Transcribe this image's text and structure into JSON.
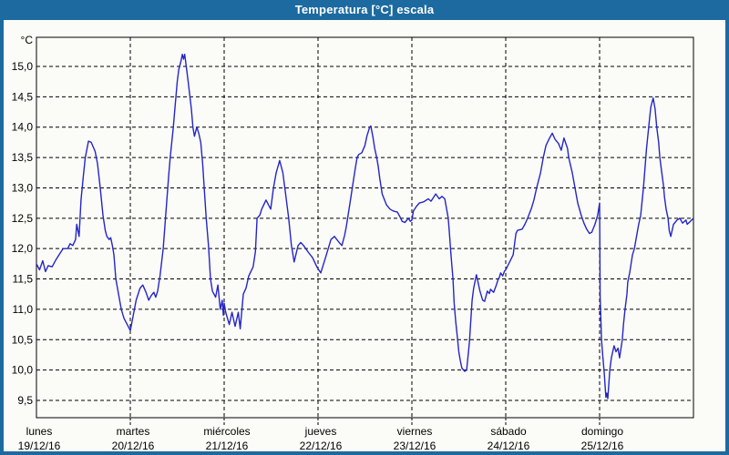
{
  "window": {
    "title": "Temperatura [°C] escala",
    "title_bar_color": "#1c6aa0",
    "border_color": "#1c6aa0",
    "background_color": "#fbfcf7"
  },
  "chart_data": {
    "type": "line",
    "title": "Temperatura [°C] escala",
    "grid": "dashed",
    "legend": "none",
    "line_color": "#2525c8",
    "y_axis": {
      "unit": "°C",
      "decimal_separator": ",",
      "tick_values": [
        15.0,
        14.5,
        14.0,
        13.5,
        13.0,
        12.5,
        12.0,
        11.5,
        11.0,
        10.5,
        10.0,
        9.5
      ],
      "tick_labels": [
        "15,0",
        "14,5",
        "14,0",
        "13,5",
        "13,0",
        "12,5",
        "12,0",
        "11,5",
        "11,0",
        "10,5",
        "10,0",
        "9,5"
      ],
      "range": [
        9.2,
        15.5
      ]
    },
    "x_axis": {
      "hours_total": 168,
      "days": [
        {
          "name": "lunes",
          "date": "19/12/16"
        },
        {
          "name": "martes",
          "date": "20/12/16"
        },
        {
          "name": "miércoles",
          "date": "21/12/16"
        },
        {
          "name": "jueves",
          "date": "22/12/16"
        },
        {
          "name": "viernes",
          "date": "23/12/16"
        },
        {
          "name": "sábado",
          "date": "24/12/16"
        },
        {
          "name": "domingo",
          "date": "25/12/16"
        }
      ]
    },
    "series": [
      {
        "name": "Temperatura",
        "points_format": "[hours_since_monday_00, temp_celsius]",
        "points": [
          [
            0,
            11.75
          ],
          [
            0.8,
            11.65
          ],
          [
            1.6,
            11.8
          ],
          [
            2.3,
            11.62
          ],
          [
            3,
            11.72
          ],
          [
            4,
            11.7
          ],
          [
            5,
            11.82
          ],
          [
            6,
            11.92
          ],
          [
            6.8,
            12.0
          ],
          [
            8,
            12.0
          ],
          [
            8.6,
            12.08
          ],
          [
            9.3,
            12.05
          ],
          [
            10,
            12.15
          ],
          [
            10.3,
            12.4
          ],
          [
            10.9,
            12.2
          ],
          [
            11.4,
            12.8
          ],
          [
            12,
            13.2
          ],
          [
            12.5,
            13.5
          ],
          [
            13.3,
            13.77
          ],
          [
            14,
            13.75
          ],
          [
            15,
            13.6
          ],
          [
            15.6,
            13.4
          ],
          [
            16.3,
            13.0
          ],
          [
            17,
            12.55
          ],
          [
            17.6,
            12.3
          ],
          [
            18,
            12.2
          ],
          [
            18.6,
            12.15
          ],
          [
            19,
            12.18
          ],
          [
            19.4,
            12.05
          ],
          [
            19.8,
            11.9
          ],
          [
            20.3,
            11.5
          ],
          [
            21,
            11.25
          ],
          [
            21.7,
            11.0
          ],
          [
            22.4,
            10.85
          ],
          [
            23.2,
            10.75
          ],
          [
            24,
            10.65
          ],
          [
            24.6,
            10.85
          ],
          [
            25.5,
            11.15
          ],
          [
            26.5,
            11.35
          ],
          [
            27.2,
            11.4
          ],
          [
            28,
            11.28
          ],
          [
            28.7,
            11.15
          ],
          [
            29.3,
            11.22
          ],
          [
            30,
            11.28
          ],
          [
            30.5,
            11.2
          ],
          [
            31,
            11.3
          ],
          [
            31.6,
            11.55
          ],
          [
            32.4,
            12.0
          ],
          [
            33,
            12.5
          ],
          [
            33.8,
            13.2
          ],
          [
            34.2,
            13.5
          ],
          [
            35,
            14.0
          ],
          [
            35.4,
            14.3
          ],
          [
            36,
            14.75
          ],
          [
            36.4,
            14.95
          ],
          [
            37,
            15.1
          ],
          [
            37.3,
            15.2
          ],
          [
            37.6,
            15.12
          ],
          [
            37.9,
            15.2
          ],
          [
            38.3,
            15.0
          ],
          [
            38.8,
            14.75
          ],
          [
            39.6,
            14.3
          ],
          [
            40,
            14.0
          ],
          [
            40.4,
            13.85
          ],
          [
            41,
            14.0
          ],
          [
            41.5,
            13.9
          ],
          [
            42,
            13.75
          ],
          [
            42.5,
            13.4
          ],
          [
            42.9,
            13.0
          ],
          [
            43.4,
            12.5
          ],
          [
            44,
            12.05
          ],
          [
            44.5,
            11.5
          ],
          [
            45,
            11.3
          ],
          [
            45.8,
            11.2
          ],
          [
            46.4,
            11.4
          ],
          [
            47,
            11.0
          ],
          [
            47.5,
            11.15
          ],
          [
            47.8,
            10.9
          ],
          [
            48,
            11.1
          ],
          [
            48.4,
            10.95
          ],
          [
            49.3,
            10.75
          ],
          [
            50,
            10.95
          ],
          [
            50.8,
            10.72
          ],
          [
            51.6,
            10.95
          ],
          [
            52.1,
            10.68
          ],
          [
            52.9,
            11.25
          ],
          [
            53.6,
            11.35
          ],
          [
            54.3,
            11.55
          ],
          [
            55.4,
            11.7
          ],
          [
            56,
            11.95
          ],
          [
            56.4,
            12.5
          ],
          [
            57.1,
            12.55
          ],
          [
            57.6,
            12.65
          ],
          [
            58.7,
            12.8
          ],
          [
            59.9,
            12.65
          ],
          [
            60.6,
            13.0
          ],
          [
            61.3,
            13.25
          ],
          [
            62.2,
            13.45
          ],
          [
            63,
            13.25
          ],
          [
            63.6,
            12.95
          ],
          [
            64.5,
            12.5
          ],
          [
            65.2,
            12.05
          ],
          [
            65.9,
            11.78
          ],
          [
            66.9,
            12.05
          ],
          [
            67.6,
            12.1
          ],
          [
            68.3,
            12.05
          ],
          [
            69.4,
            11.95
          ],
          [
            70.6,
            11.85
          ],
          [
            71.7,
            11.7
          ],
          [
            72.7,
            11.6
          ],
          [
            73.9,
            11.85
          ],
          [
            74.6,
            12.0
          ],
          [
            75.3,
            12.15
          ],
          [
            76.2,
            12.2
          ],
          [
            77.4,
            12.1
          ],
          [
            78.1,
            12.05
          ],
          [
            78.8,
            12.22
          ],
          [
            79.2,
            12.35
          ],
          [
            79.7,
            12.55
          ],
          [
            80.4,
            12.85
          ],
          [
            81,
            13.1
          ],
          [
            81.6,
            13.35
          ],
          [
            82,
            13.5
          ],
          [
            82.4,
            13.55
          ],
          [
            83.2,
            13.58
          ],
          [
            84,
            13.7
          ],
          [
            84.5,
            13.85
          ],
          [
            85.2,
            14.0
          ],
          [
            85.5,
            14.02
          ],
          [
            86,
            13.85
          ],
          [
            86.5,
            13.65
          ],
          [
            87,
            13.5
          ],
          [
            87.4,
            13.35
          ],
          [
            87.8,
            13.15
          ],
          [
            88.4,
            12.9
          ],
          [
            89,
            12.8
          ],
          [
            89.5,
            12.72
          ],
          [
            90.4,
            12.65
          ],
          [
            91.2,
            12.62
          ],
          [
            92.3,
            12.6
          ],
          [
            92.9,
            12.53
          ],
          [
            93.5,
            12.45
          ],
          [
            94.2,
            12.43
          ],
          [
            95.1,
            12.5
          ],
          [
            95.6,
            12.45
          ],
          [
            96,
            12.47
          ],
          [
            96.4,
            12.62
          ],
          [
            97.2,
            12.7
          ],
          [
            97.9,
            12.75
          ],
          [
            99,
            12.77
          ],
          [
            100.2,
            12.82
          ],
          [
            100.9,
            12.78
          ],
          [
            102.1,
            12.9
          ],
          [
            103,
            12.82
          ],
          [
            103.7,
            12.86
          ],
          [
            104.4,
            12.82
          ],
          [
            105.3,
            12.5
          ],
          [
            105.6,
            12.25
          ],
          [
            106,
            11.9
          ],
          [
            106.5,
            11.5
          ],
          [
            106.8,
            11.1
          ],
          [
            107.2,
            10.8
          ],
          [
            107.7,
            10.5
          ],
          [
            108,
            10.3
          ],
          [
            108.4,
            10.15
          ],
          [
            108.8,
            10.03
          ],
          [
            109.5,
            9.98
          ],
          [
            110,
            10.0
          ],
          [
            110.7,
            10.45
          ],
          [
            111.1,
            10.85
          ],
          [
            111.4,
            11.15
          ],
          [
            111.8,
            11.35
          ],
          [
            112.5,
            11.57
          ],
          [
            113.4,
            11.3
          ],
          [
            114.1,
            11.15
          ],
          [
            114.6,
            11.13
          ],
          [
            115.3,
            11.3
          ],
          [
            115.8,
            11.26
          ],
          [
            116.1,
            11.33
          ],
          [
            116.9,
            11.28
          ],
          [
            117.6,
            11.4
          ],
          [
            118.1,
            11.5
          ],
          [
            118.4,
            11.53
          ],
          [
            118.7,
            11.6
          ],
          [
            119.2,
            11.55
          ],
          [
            119.7,
            11.63
          ],
          [
            120,
            11.65
          ],
          [
            121.9,
            11.9
          ],
          [
            122.1,
            12.0
          ],
          [
            122.6,
            12.25
          ],
          [
            123,
            12.3
          ],
          [
            124.2,
            12.32
          ],
          [
            124.9,
            12.4
          ],
          [
            125.6,
            12.5
          ],
          [
            126.5,
            12.65
          ],
          [
            127.2,
            12.8
          ],
          [
            127.9,
            13.0
          ],
          [
            128.9,
            13.25
          ],
          [
            129.6,
            13.5
          ],
          [
            130.3,
            13.7
          ],
          [
            131.2,
            13.82
          ],
          [
            131.9,
            13.9
          ],
          [
            132.6,
            13.8
          ],
          [
            133.5,
            13.73
          ],
          [
            134.2,
            13.62
          ],
          [
            134.9,
            13.82
          ],
          [
            135.8,
            13.65
          ],
          [
            136.1,
            13.5
          ],
          [
            137,
            13.25
          ],
          [
            137.7,
            13.0
          ],
          [
            138.4,
            12.75
          ],
          [
            139.3,
            12.55
          ],
          [
            140,
            12.42
          ],
          [
            140.7,
            12.32
          ],
          [
            141.4,
            12.25
          ],
          [
            142,
            12.27
          ],
          [
            142.8,
            12.4
          ],
          [
            143.5,
            12.55
          ],
          [
            144,
            12.75
          ],
          [
            144.15,
            11.2
          ],
          [
            144.5,
            10.5
          ],
          [
            144.8,
            10.25
          ],
          [
            145.2,
            9.95
          ],
          [
            145.6,
            9.55
          ],
          [
            145.85,
            9.62
          ],
          [
            146.1,
            9.53
          ],
          [
            146.6,
            10.0
          ],
          [
            147,
            10.2
          ],
          [
            147.7,
            10.4
          ],
          [
            148.2,
            10.3
          ],
          [
            148.7,
            10.36
          ],
          [
            149.1,
            10.2
          ],
          [
            149.8,
            10.5
          ],
          [
            150.1,
            10.75
          ],
          [
            150.5,
            11.0
          ],
          [
            151,
            11.25
          ],
          [
            151.2,
            11.45
          ],
          [
            151.7,
            11.6
          ],
          [
            152.4,
            11.9
          ],
          [
            152.9,
            12.0
          ],
          [
            153.3,
            12.15
          ],
          [
            154,
            12.4
          ],
          [
            154.5,
            12.55
          ],
          [
            155.2,
            13.0
          ],
          [
            155.7,
            13.4
          ],
          [
            156,
            13.65
          ],
          [
            156.4,
            13.9
          ],
          [
            156.8,
            14.15
          ],
          [
            157.1,
            14.33
          ],
          [
            157.7,
            14.48
          ],
          [
            158.2,
            14.3
          ],
          [
            158.6,
            14.0
          ],
          [
            159.1,
            13.75
          ],
          [
            159.4,
            13.5
          ],
          [
            159.8,
            13.3
          ],
          [
            160.3,
            13.05
          ],
          [
            160.6,
            12.85
          ],
          [
            161,
            12.65
          ],
          [
            161.5,
            12.5
          ],
          [
            161.8,
            12.3
          ],
          [
            162.2,
            12.2
          ],
          [
            162.9,
            12.4
          ],
          [
            163.8,
            12.47
          ],
          [
            164.5,
            12.5
          ],
          [
            165.2,
            12.42
          ],
          [
            166.1,
            12.47
          ],
          [
            166.4,
            12.4
          ],
          [
            167.2,
            12.45
          ],
          [
            168,
            12.5
          ]
        ]
      }
    ]
  }
}
